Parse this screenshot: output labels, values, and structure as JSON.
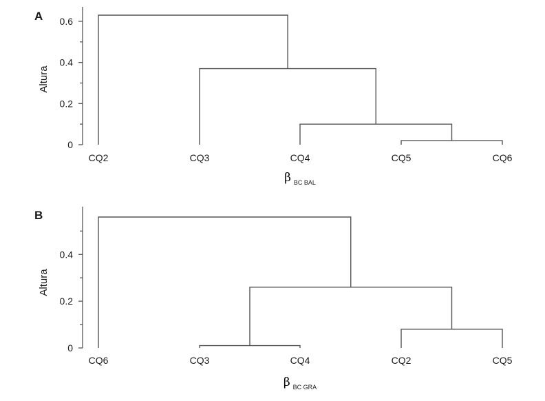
{
  "chart_data": [
    {
      "type": "dendrogram",
      "panel_label": "A",
      "ylabel": "Altura",
      "xlabel": {
        "symbol": "β",
        "subscript": "BC BAL"
      },
      "leaves": [
        "CQ2",
        "CQ3",
        "CQ4",
        "CQ5",
        "CQ6"
      ],
      "ylim": [
        0,
        0.63
      ],
      "yticks": [
        0,
        0.2,
        0.4,
        0.6
      ],
      "ytick_labels": [
        "0",
        "0.2",
        "0.4",
        "0.6"
      ],
      "minor_ticks": [
        0.1,
        0.3,
        0.5
      ],
      "merges": [
        {
          "left": "CQ5",
          "right": "CQ6",
          "height": 0.02
        },
        {
          "left": "CQ4",
          "right": "CQ5+CQ6",
          "height": 0.1
        },
        {
          "left": "CQ3",
          "right": "CQ4+CQ5+CQ6",
          "height": 0.37
        },
        {
          "left": "CQ2",
          "right": "CQ3+CQ4+CQ5+CQ6",
          "height": 0.63
        }
      ]
    },
    {
      "type": "dendrogram",
      "panel_label": "B",
      "ylabel": "Altura",
      "xlabel": {
        "symbol": "β",
        "subscript": "BC GRA"
      },
      "leaves": [
        "CQ6",
        "CQ3",
        "CQ4",
        "CQ2",
        "CQ5"
      ],
      "ylim": [
        0,
        0.56
      ],
      "yticks": [
        0,
        0.2,
        0.4
      ],
      "ytick_labels": [
        "0",
        "0.2",
        "0.4"
      ],
      "minor_ticks": [
        0.1,
        0.3,
        0.5
      ],
      "merges": [
        {
          "left": "CQ3",
          "right": "CQ4",
          "height": 0.01
        },
        {
          "left": "CQ2",
          "right": "CQ5",
          "height": 0.08
        },
        {
          "left": "CQ3+CQ4",
          "right": "CQ2+CQ5",
          "height": 0.26
        },
        {
          "left": "CQ6",
          "right": "CQ3+CQ4+CQ2+CQ5",
          "height": 0.56
        }
      ]
    }
  ]
}
